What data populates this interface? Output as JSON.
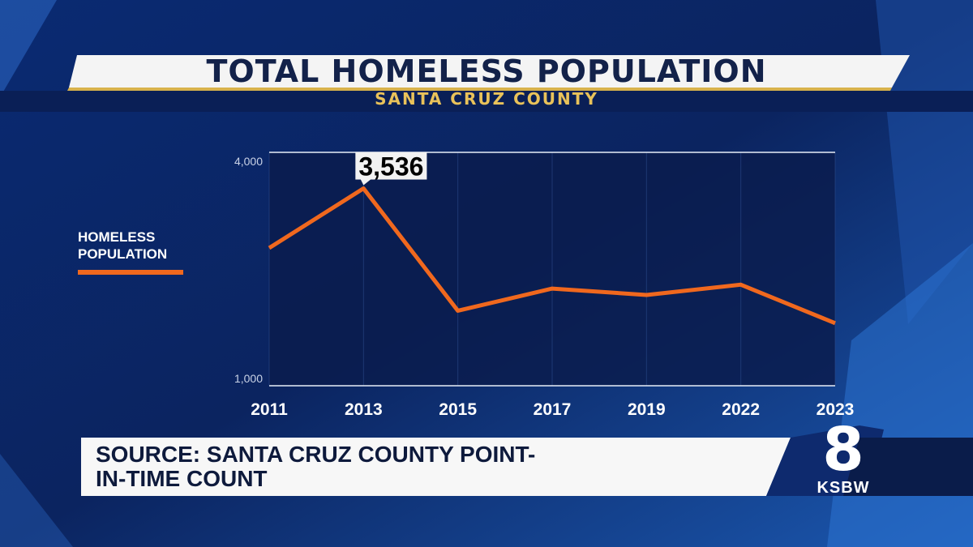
{
  "chart_data": {
    "type": "line",
    "title": "TOTAL HOMELESS POPULATION",
    "subtitle": "SANTA CRUZ COUNTY",
    "categories": [
      "2011",
      "2013",
      "2015",
      "2017",
      "2019",
      "2022",
      "2023"
    ],
    "series": [
      {
        "name": "HOMELESS POPULATION",
        "color": "#f0681e",
        "values": [
          2771,
          3536,
          1964,
          2249,
          2167,
          2299,
          1804
        ],
        "value_labels": [
          null,
          "3,536",
          null,
          null,
          null,
          null,
          null
        ]
      }
    ],
    "ylim": [
      1000,
      4000
    ],
    "yticks": [
      {
        "value": 4000,
        "label": "4,000"
      },
      {
        "value": 1000,
        "label": "1,000"
      }
    ],
    "grid": true
  },
  "source": "SOURCE: SANTA CRUZ COUNTY POINT-IN-TIME  COUNT",
  "logo": {
    "number": "8",
    "name": "KSBW"
  }
}
